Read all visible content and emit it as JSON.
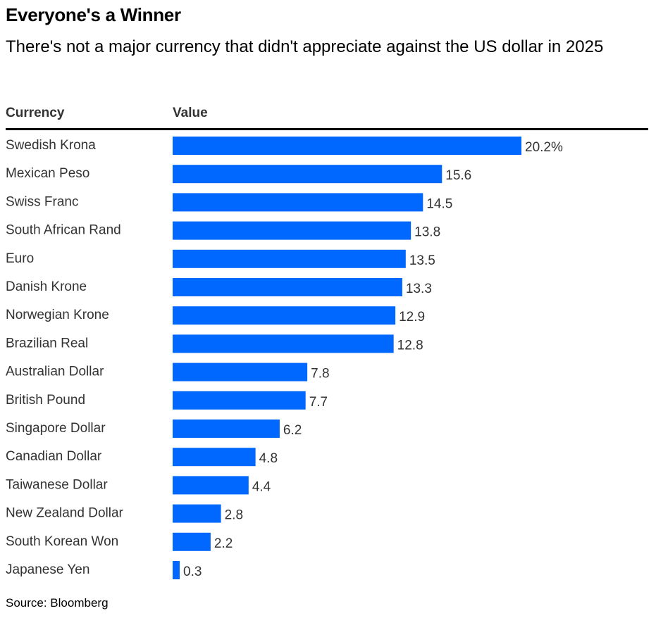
{
  "title": "Everyone's a Winner",
  "subtitle": "There's not a major currency that didn't appreciate against the US dollar in 2025",
  "columns": {
    "currency": "Currency",
    "value": "Value"
  },
  "source": "Source: Bloomberg",
  "colors": {
    "bar": "#0068ff",
    "label": "#333333"
  },
  "chart_data": {
    "type": "bar",
    "orientation": "horizontal",
    "title": "Everyone's a Winner",
    "xlabel": "Value",
    "ylabel": "Currency",
    "unit_suffix_first": "%",
    "categories": [
      "Swedish Krona",
      "Mexican Peso",
      "Swiss Franc",
      "South African Rand",
      "Euro",
      "Danish Krone",
      "Norwegian Krone",
      "Brazilian Real",
      "Australian Dollar",
      "British Pound",
      "Singapore Dollar",
      "Canadian Dollar",
      "Taiwanese Dollar",
      "New Zealand Dollar",
      "South Korean Won",
      "Japanese Yen"
    ],
    "values": [
      20.2,
      15.6,
      14.5,
      13.8,
      13.5,
      13.3,
      12.9,
      12.8,
      7.8,
      7.7,
      6.2,
      4.8,
      4.4,
      2.8,
      2.2,
      0.3
    ],
    "value_labels": [
      "20.2%",
      "15.6",
      "14.5",
      "13.8",
      "13.5",
      "13.3",
      "12.9",
      "12.8",
      "7.8",
      "7.7",
      "6.2",
      "4.8",
      "4.4",
      "2.8",
      "2.2",
      "0.3"
    ],
    "xlim": [
      0,
      20.2
    ],
    "grid": false,
    "legend": "none"
  }
}
